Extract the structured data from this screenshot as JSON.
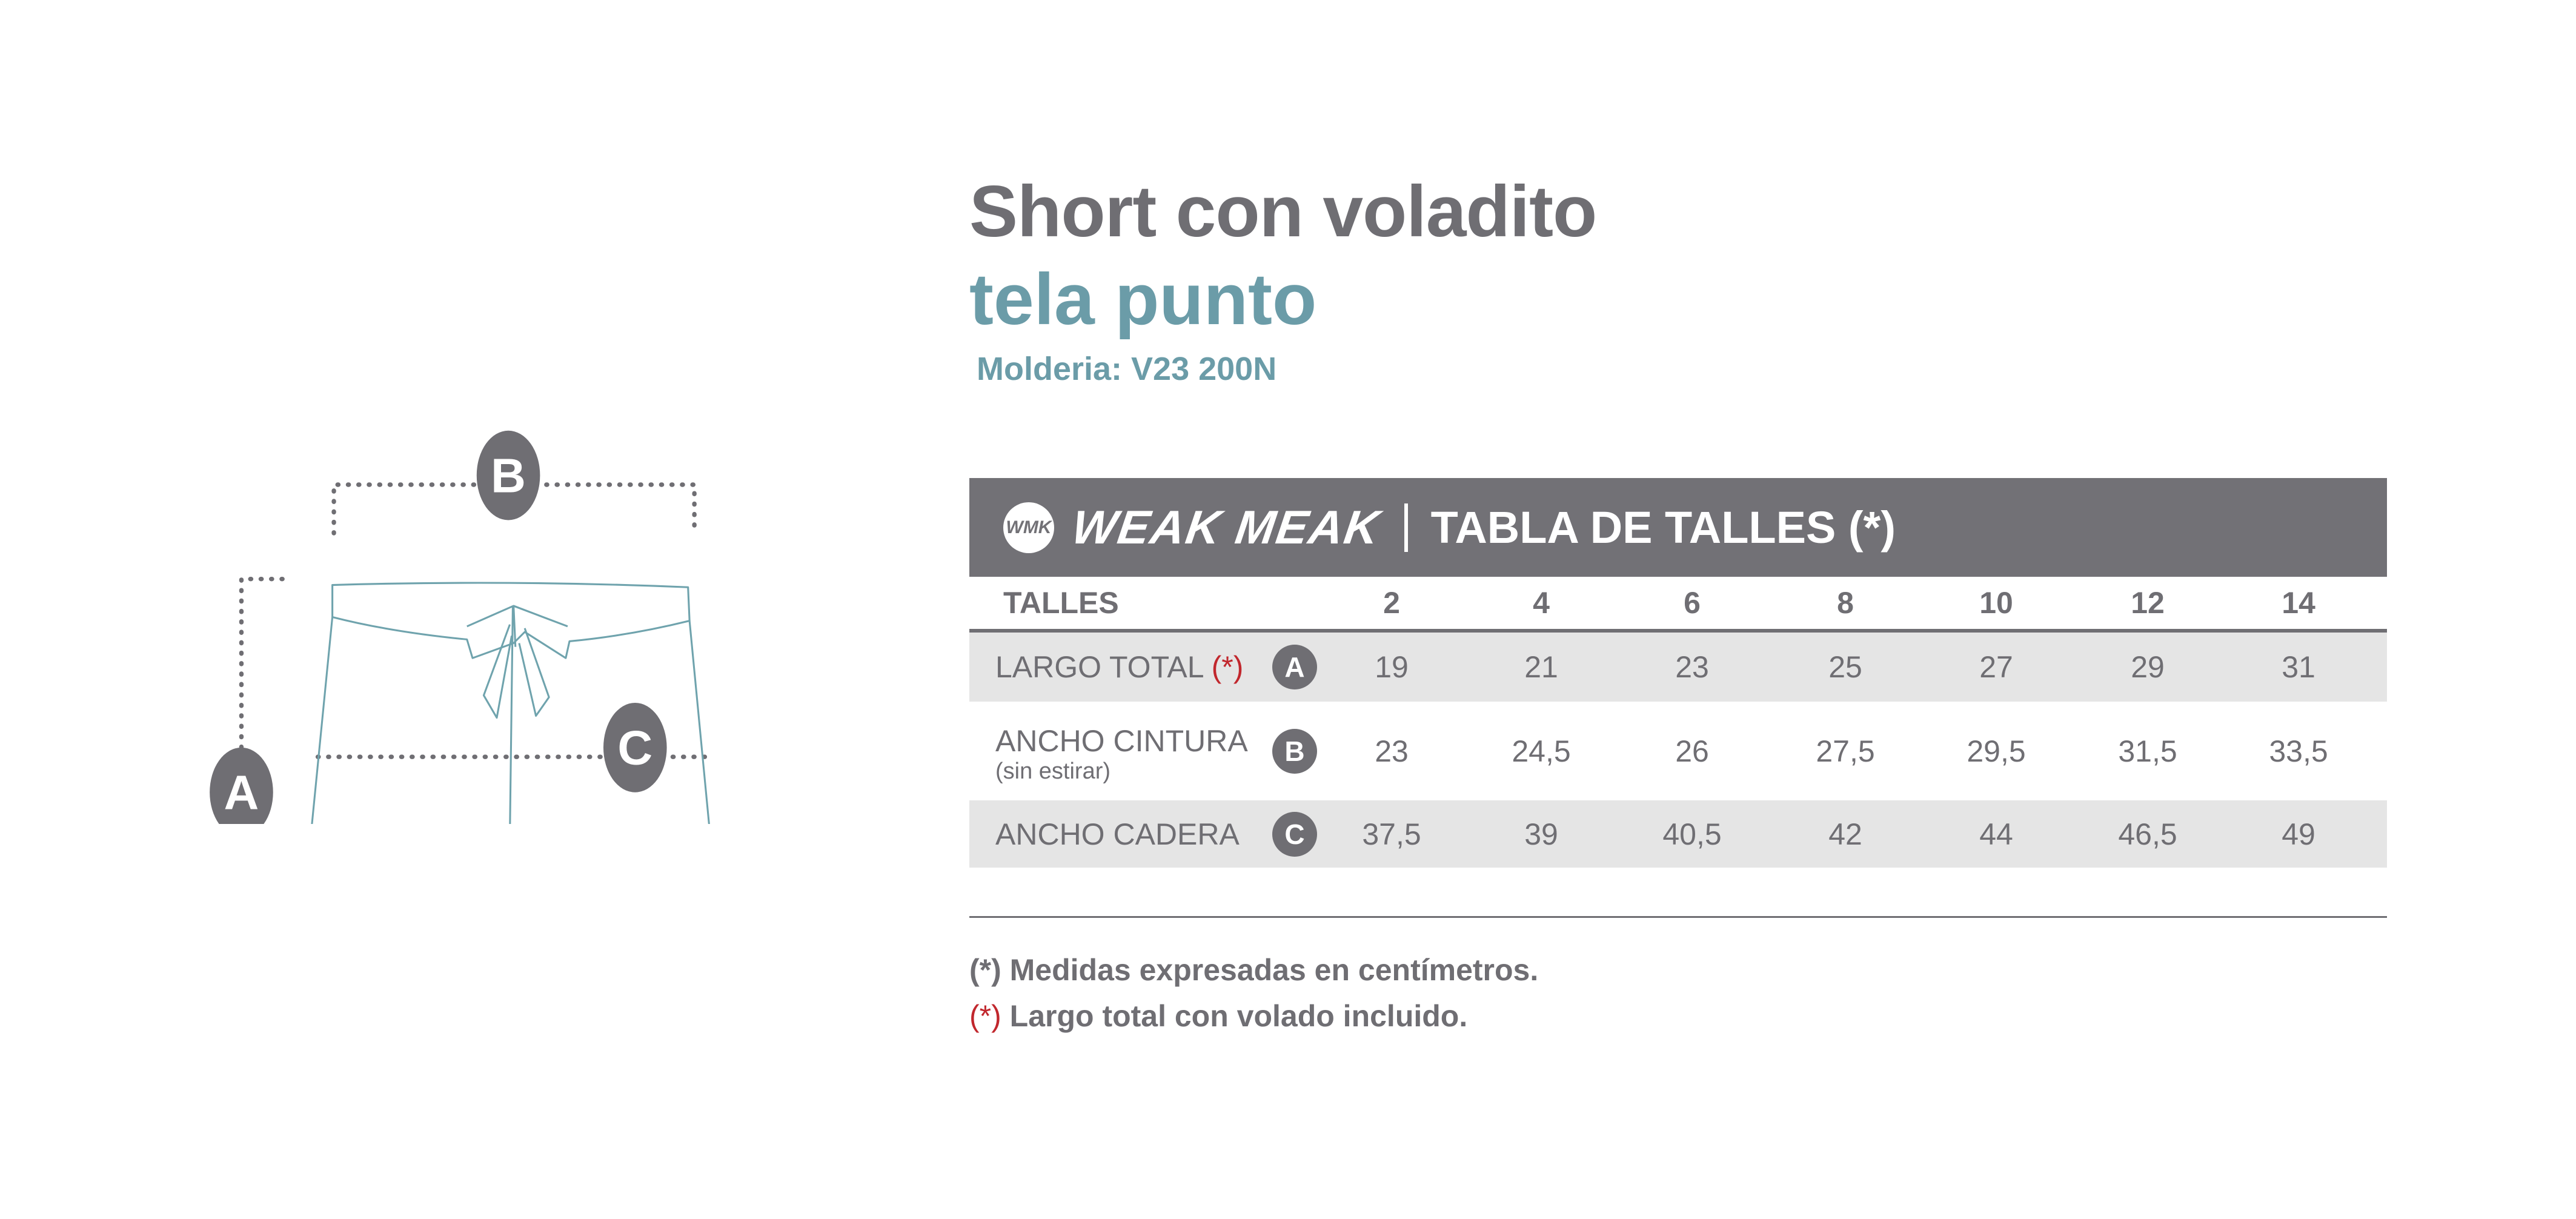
{
  "title": "Short con voladito",
  "subtitle": "tela punto",
  "molderia": "Molderia: V23 200N",
  "diagram": {
    "labels": [
      "A",
      "B",
      "C"
    ],
    "stroke_color": "#6fa3ad",
    "marker_color": "#6f6e73"
  },
  "table": {
    "logo_mark": "WMK",
    "brand": "WEAK MEAK",
    "heading": "TABLA DE TALLES (*)",
    "header_label": "TALLES",
    "sizes": [
      "2",
      "4",
      "6",
      "8",
      "10",
      "12",
      "14"
    ],
    "rows": [
      {
        "label": "LARGO TOTAL",
        "mark": "(*)",
        "note": "",
        "badge": "A",
        "values": [
          "19",
          "21",
          "23",
          "25",
          "27",
          "29",
          "31"
        ]
      },
      {
        "label": "ANCHO CINTURA",
        "mark": "",
        "note": "(sin estirar)",
        "badge": "B",
        "values": [
          "23",
          "24,5",
          "26",
          "27,5",
          "29,5",
          "31,5",
          "33,5"
        ]
      },
      {
        "label": "ANCHO CADERA",
        "mark": "",
        "note": "",
        "badge": "C",
        "values": [
          "37,5",
          "39",
          "40,5",
          "42",
          "44",
          "46,5",
          "49"
        ]
      }
    ]
  },
  "footnotes": [
    {
      "mark": "(*)",
      "text": " Medidas expresadas en centímetros.",
      "mark_color": "#6f6e73"
    },
    {
      "mark": "(*)",
      "text": " Largo total con volado incluido.",
      "mark_color": "#c1272d"
    }
  ],
  "colors": {
    "gray": "#6f6e73",
    "teal": "#6b9ca8",
    "row_shade": "#e5e5e5",
    "red": "#c1272d"
  }
}
